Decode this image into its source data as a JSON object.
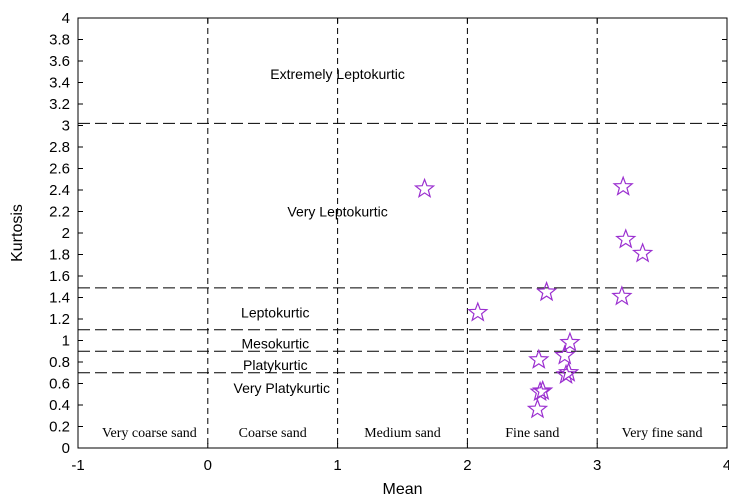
{
  "chart_data": {
    "type": "scatter",
    "xlabel": "Mean",
    "ylabel": "Kurtosis",
    "xlim": [
      -1,
      4
    ],
    "ylim": [
      0,
      4
    ],
    "x_ticks": [
      -1,
      0,
      1,
      2,
      3,
      4
    ],
    "y_ticks": [
      0,
      0.2,
      0.4,
      0.6,
      0.8,
      1,
      1.2,
      1.4,
      1.6,
      1.8,
      2,
      2.2,
      2.4,
      2.6,
      2.8,
      3,
      3.2,
      3.4,
      3.6,
      3.8,
      4
    ],
    "marker": "star",
    "marker_color": "#9b30d0",
    "vertical_dividers": [
      0,
      1,
      2,
      3
    ],
    "horizontal_dividers": [
      0.7,
      0.9,
      1.1,
      1.49,
      3.02
    ],
    "x_region_labels": [
      {
        "text": "Very coarse sand",
        "x": -0.45
      },
      {
        "text": "Coarse sand",
        "x": 0.5
      },
      {
        "text": "Medium sand",
        "x": 1.5
      },
      {
        "text": "Fine sand",
        "x": 2.5
      },
      {
        "text": "Very fine sand",
        "x": 3.5
      }
    ],
    "y_region_labels": [
      {
        "text": "Extremely Leptokurtic",
        "x": 1.0,
        "y": 3.48
      },
      {
        "text": "Very Leptokurtic",
        "x": 1.0,
        "y": 2.2
      },
      {
        "text": "Leptokurtic",
        "x": 0.52,
        "y": 1.26
      },
      {
        "text": "Mesokurtic",
        "x": 0.52,
        "y": 0.97
      },
      {
        "text": "Platykurtic",
        "x": 0.52,
        "y": 0.77
      },
      {
        "text": "Very Platykurtic",
        "x": 0.57,
        "y": 0.56
      }
    ],
    "points": [
      {
        "x": 1.67,
        "y": 2.41
      },
      {
        "x": 2.08,
        "y": 1.26
      },
      {
        "x": 2.61,
        "y": 1.45
      },
      {
        "x": 2.55,
        "y": 0.82
      },
      {
        "x": 2.58,
        "y": 0.53
      },
      {
        "x": 2.56,
        "y": 0.52
      },
      {
        "x": 2.54,
        "y": 0.36
      },
      {
        "x": 2.79,
        "y": 0.98
      },
      {
        "x": 2.75,
        "y": 0.86
      },
      {
        "x": 2.78,
        "y": 0.7
      },
      {
        "x": 2.76,
        "y": 0.68
      },
      {
        "x": 3.2,
        "y": 2.43
      },
      {
        "x": 3.22,
        "y": 1.94
      },
      {
        "x": 3.35,
        "y": 1.81
      },
      {
        "x": 3.19,
        "y": 1.41
      }
    ]
  }
}
